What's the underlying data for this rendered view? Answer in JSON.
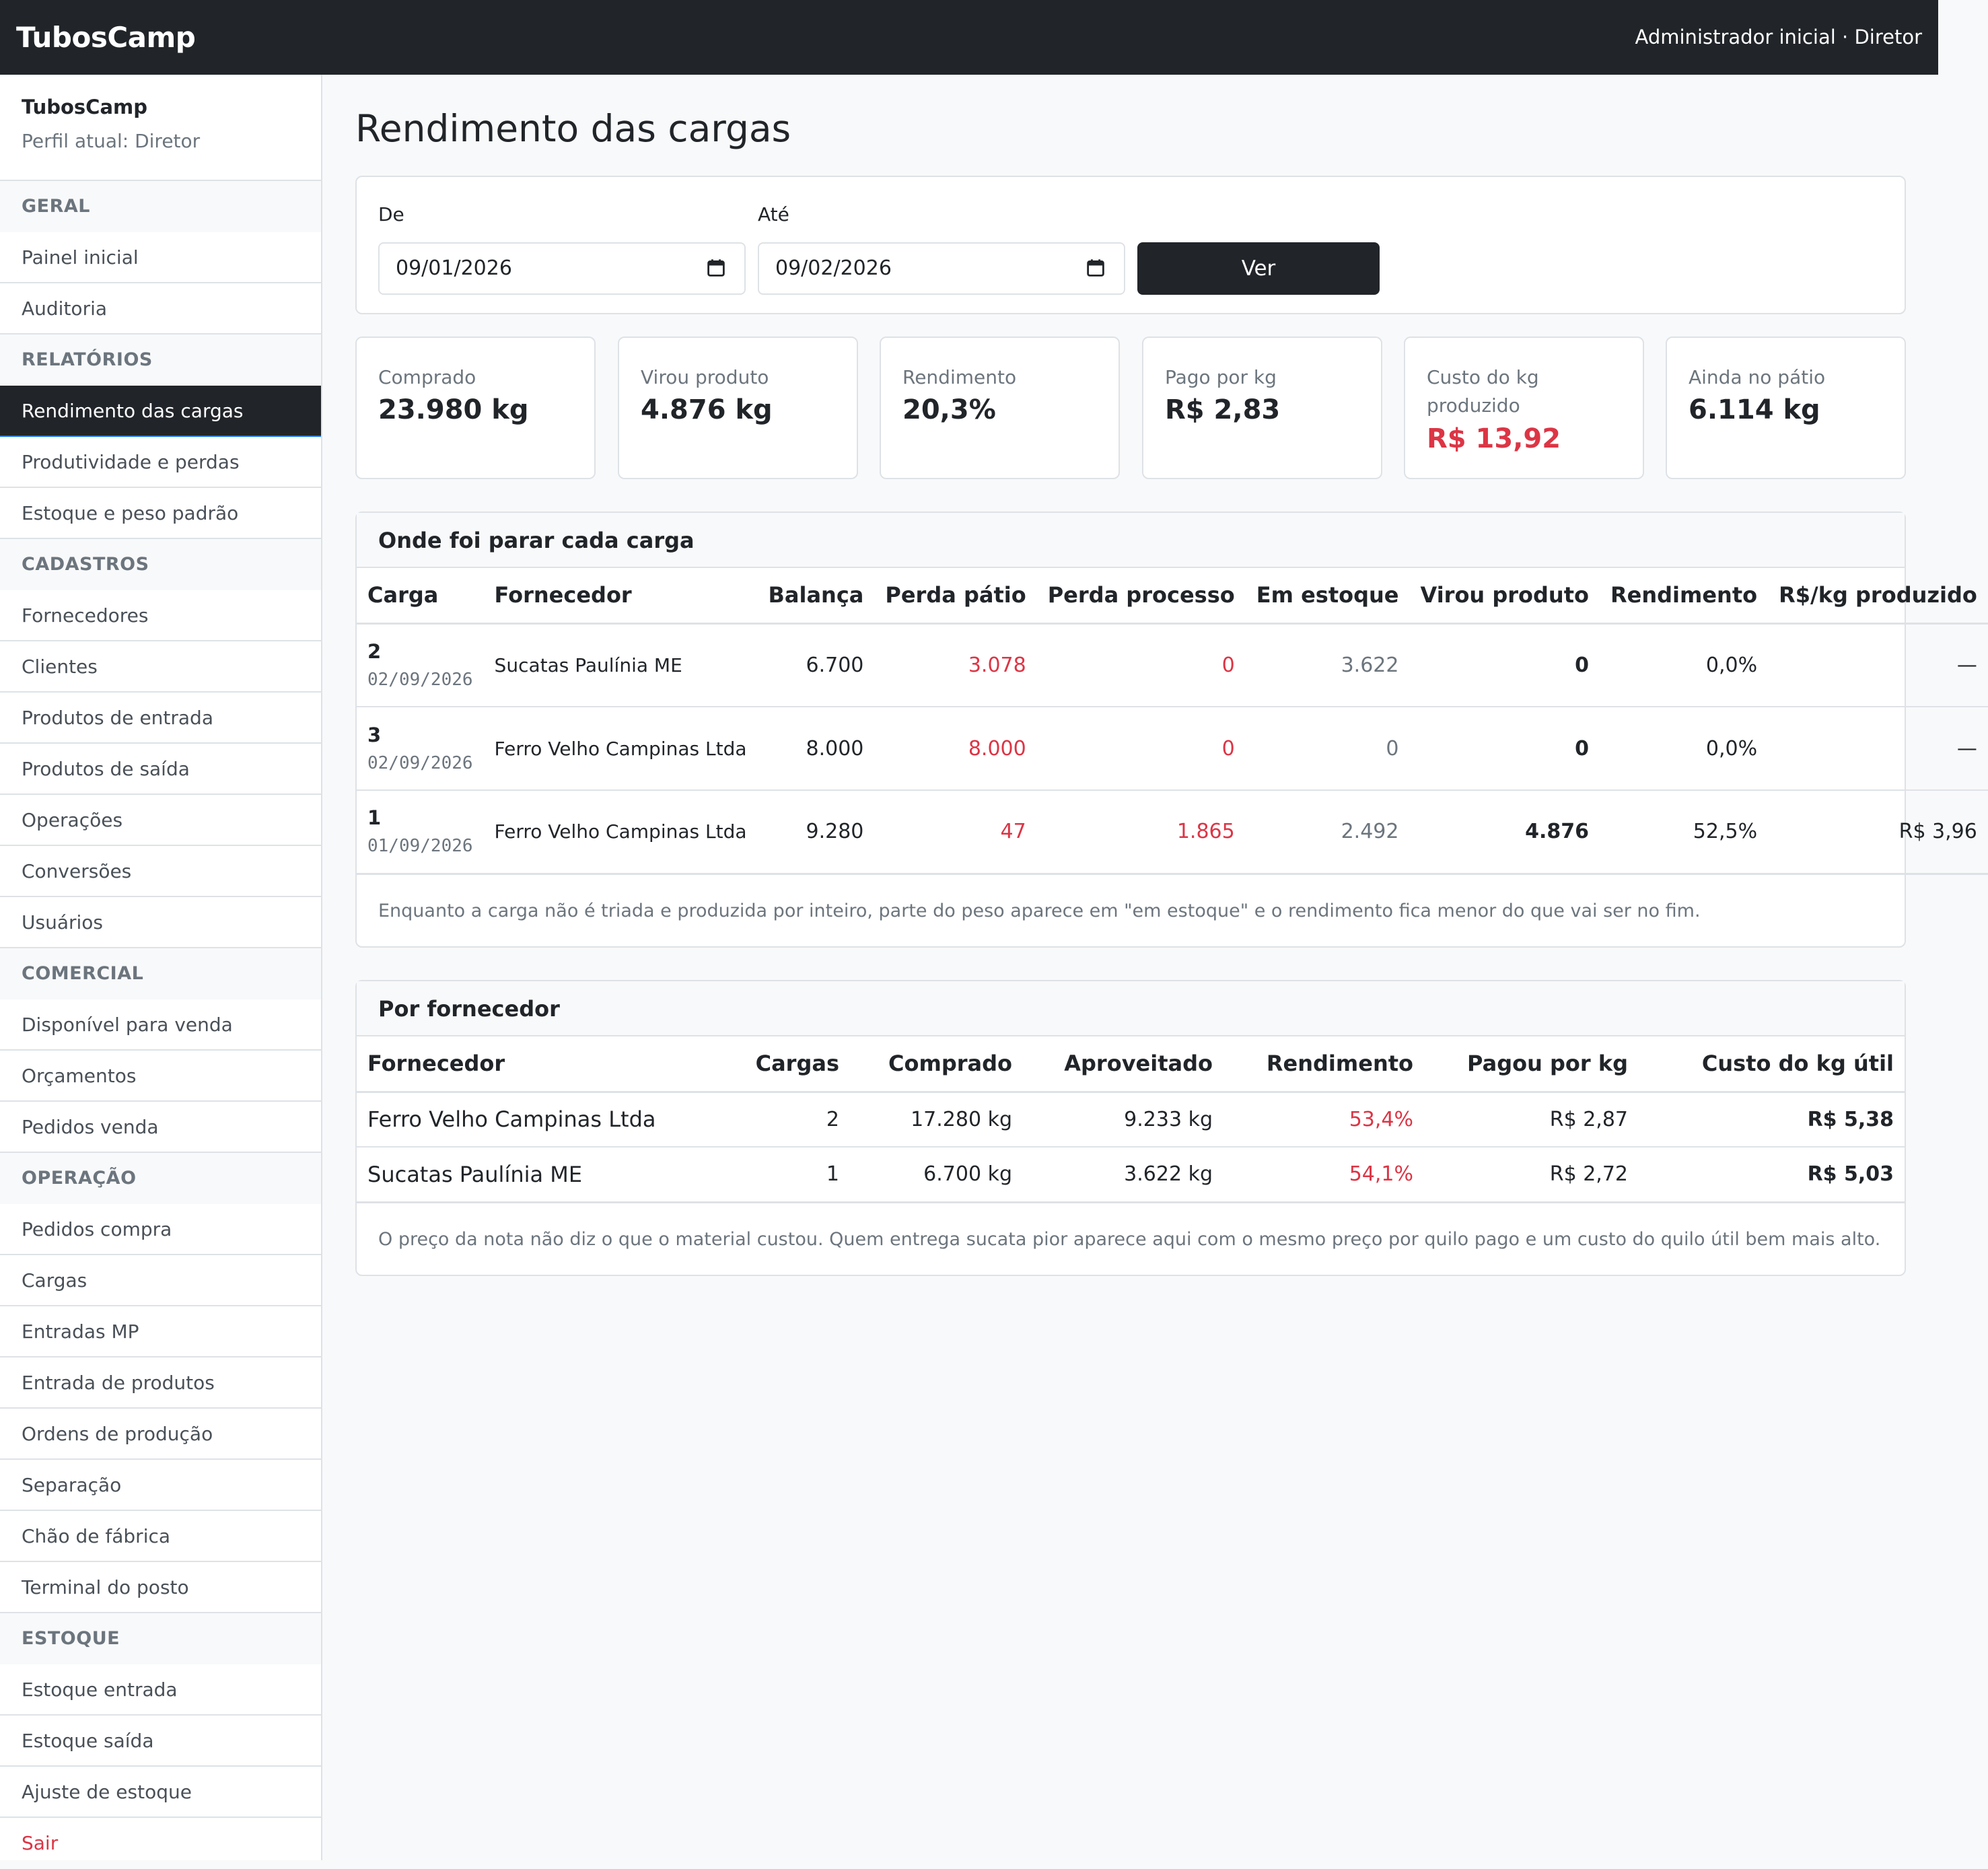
{
  "navbar": {
    "brand": "TubosCamp",
    "user": "Administrador inicial · Diretor"
  },
  "sidebar": {
    "title": "TubosCamp",
    "profile": "Perfil atual: Diretor",
    "items": [
      {
        "type": "section",
        "label": "GERAL"
      },
      {
        "type": "link",
        "label": "Painel inicial"
      },
      {
        "type": "link",
        "label": "Auditoria"
      },
      {
        "type": "section",
        "label": "RELATÓRIOS"
      },
      {
        "type": "active",
        "label": "Rendimento das cargas"
      },
      {
        "type": "link",
        "label": "Produtividade e perdas"
      },
      {
        "type": "link",
        "label": "Estoque e peso padrão"
      },
      {
        "type": "section",
        "label": "CADASTROS"
      },
      {
        "type": "link",
        "label": "Fornecedores"
      },
      {
        "type": "link",
        "label": "Clientes"
      },
      {
        "type": "link",
        "label": "Produtos de entrada"
      },
      {
        "type": "link",
        "label": "Produtos de saída"
      },
      {
        "type": "link",
        "label": "Operações"
      },
      {
        "type": "link",
        "label": "Conversões"
      },
      {
        "type": "link",
        "label": "Usuários"
      },
      {
        "type": "section",
        "label": "COMERCIAL"
      },
      {
        "type": "link",
        "label": "Disponível para venda"
      },
      {
        "type": "link",
        "label": "Orçamentos"
      },
      {
        "type": "link",
        "label": "Pedidos venda"
      },
      {
        "type": "section",
        "label": "OPERAÇÃO"
      },
      {
        "type": "link",
        "label": "Pedidos compra"
      },
      {
        "type": "link",
        "label": "Cargas"
      },
      {
        "type": "link",
        "label": "Entradas MP"
      },
      {
        "type": "link",
        "label": "Entrada de produtos"
      },
      {
        "type": "link",
        "label": "Ordens de produção"
      },
      {
        "type": "link",
        "label": "Separação"
      },
      {
        "type": "link",
        "label": "Chão de fábrica"
      },
      {
        "type": "link",
        "label": "Terminal do posto"
      },
      {
        "type": "section",
        "label": "ESTOQUE"
      },
      {
        "type": "link",
        "label": "Estoque entrada"
      },
      {
        "type": "link",
        "label": "Estoque saída"
      },
      {
        "type": "link",
        "label": "Ajuste de estoque"
      },
      {
        "type": "logout",
        "label": "Sair"
      }
    ]
  },
  "page": {
    "title": "Rendimento das cargas"
  },
  "filter": {
    "from_label": "De",
    "from_value": "09/01/2026",
    "to_label": "Até",
    "to_value": "09/02/2026",
    "button": "Ver"
  },
  "kpis": [
    {
      "label": "Comprado",
      "value": "23.980 kg",
      "highlight": false
    },
    {
      "label": "Virou produto",
      "value": "4.876 kg",
      "highlight": false
    },
    {
      "label": "Rendimento",
      "value": "20,3%",
      "highlight": false
    },
    {
      "label": "Pago por kg",
      "value": "R$ 2,83",
      "highlight": false
    },
    {
      "label": "Custo do kg produzido",
      "value": "R$ 13,92",
      "highlight": true
    },
    {
      "label": "Ainda no pátio",
      "value": "6.114 kg",
      "highlight": false
    }
  ],
  "cargas": {
    "title": "Onde foi parar cada carga",
    "columns": [
      "Carga",
      "Fornecedor",
      "Balança",
      "Perda pátio",
      "Perda processo",
      "Em estoque",
      "Virou produto",
      "Rendimento",
      "R$/kg produzido"
    ],
    "rows": [
      {
        "id": "2",
        "date": "02/09/2026",
        "fornecedor": "Sucatas Paulínia ME",
        "balanca": "6.700",
        "perda_patio": "3.078",
        "perda_processo": "0",
        "estoque": "3.622",
        "virou": "0",
        "rendimento": "0,0%",
        "rskg": "—"
      },
      {
        "id": "3",
        "date": "02/09/2026",
        "fornecedor": "Ferro Velho Campinas Ltda",
        "balanca": "8.000",
        "perda_patio": "8.000",
        "perda_processo": "0",
        "estoque": "0",
        "virou": "0",
        "rendimento": "0,0%",
        "rskg": "—"
      },
      {
        "id": "1",
        "date": "01/09/2026",
        "fornecedor": "Ferro Velho Campinas Ltda",
        "balanca": "9.280",
        "perda_patio": "47",
        "perda_processo": "1.865",
        "estoque": "2.492",
        "virou": "4.876",
        "rendimento": "52,5%",
        "rskg": "R$ 3,96"
      }
    ],
    "note": "Enquanto a carga não é triada e produzida por inteiro, parte do peso aparece em \"em estoque\" e o rendimento fica menor do que vai ser no fim."
  },
  "fornecedores": {
    "title": "Por fornecedor",
    "columns": [
      "Fornecedor",
      "Cargas",
      "Comprado",
      "Aproveitado",
      "Rendimento",
      "Pagou por kg",
      "Custo do kg útil"
    ],
    "rows": [
      {
        "fornecedor": "Ferro Velho Campinas Ltda",
        "cargas": "2",
        "comprado": "17.280 kg",
        "aproveitado": "9.233 kg",
        "rendimento": "53,4%",
        "pagou": "R$ 2,87",
        "custo": "R$ 5,38"
      },
      {
        "fornecedor": "Sucatas Paulínia ME",
        "cargas": "1",
        "comprado": "6.700 kg",
        "aproveitado": "3.622 kg",
        "rendimento": "54,1%",
        "pagou": "R$ 2,72",
        "custo": "R$ 5,03"
      }
    ],
    "note": "O preço da nota não diz o que o material custou. Quem entrega sucata pior aparece aqui com o mesmo preço por quilo pago e um custo do quilo útil bem mais alto."
  },
  "colors": {
    "dark": "#212529",
    "danger": "#dc3545",
    "muted": "#6c757d",
    "border": "#dee2e6",
    "bg": "#f8f9fa"
  }
}
